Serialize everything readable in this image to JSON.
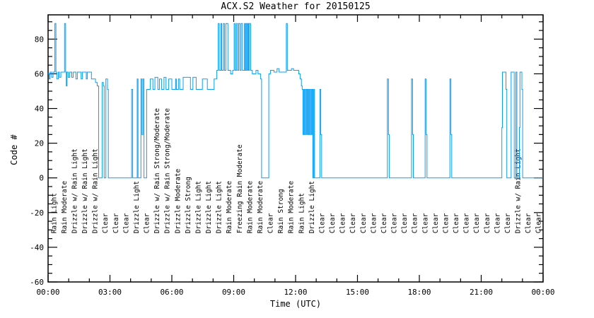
{
  "chart_data": {
    "type": "line",
    "title": "ACX.S2 Weather for 20150125",
    "xlabel": "Time (UTC)",
    "ylabel": "Code #",
    "xlim_hours": [
      0,
      24
    ],
    "ylim": [
      -60,
      94
    ],
    "grid": false,
    "legend": "none",
    "line_color": "#06a0fa",
    "axis_color": "#000000",
    "x_major_ticks": [
      {
        "hour": 0,
        "label": "00:00"
      },
      {
        "hour": 3,
        "label": "03:00"
      },
      {
        "hour": 6,
        "label": "06:00"
      },
      {
        "hour": 9,
        "label": "09:00"
      },
      {
        "hour": 12,
        "label": "12:00"
      },
      {
        "hour": 15,
        "label": "15:00"
      },
      {
        "hour": 18,
        "label": "18:00"
      },
      {
        "hour": 21,
        "label": "21:00"
      },
      {
        "hour": 24,
        "label": "00:00"
      }
    ],
    "x_minor_step_hours": 1,
    "y_major_ticks": [
      -60,
      -40,
      -20,
      0,
      20,
      40,
      60,
      80
    ],
    "y_minor_step": 5,
    "series": [
      {
        "name": "weather code",
        "step_points": [
          [
            0.0,
            60
          ],
          [
            0.05,
            57
          ],
          [
            0.1,
            61
          ],
          [
            0.17,
            58
          ],
          [
            0.24,
            61
          ],
          [
            0.33,
            89
          ],
          [
            0.38,
            61
          ],
          [
            0.42,
            57
          ],
          [
            0.5,
            61
          ],
          [
            0.55,
            58
          ],
          [
            0.62,
            61
          ],
          [
            0.8,
            89
          ],
          [
            0.85,
            61
          ],
          [
            0.88,
            53
          ],
          [
            0.92,
            61
          ],
          [
            0.98,
            58
          ],
          [
            1.05,
            61
          ],
          [
            1.15,
            58
          ],
          [
            1.22,
            61
          ],
          [
            1.35,
            57
          ],
          [
            1.42,
            61
          ],
          [
            1.6,
            57
          ],
          [
            1.66,
            61
          ],
          [
            1.85,
            57
          ],
          [
            1.9,
            61
          ],
          [
            2.1,
            57
          ],
          [
            2.3,
            55
          ],
          [
            2.38,
            53
          ],
          [
            2.45,
            0
          ],
          [
            2.62,
            55
          ],
          [
            2.68,
            53
          ],
          [
            2.72,
            0
          ],
          [
            2.8,
            57
          ],
          [
            2.88,
            51
          ],
          [
            2.92,
            0
          ],
          [
            4.05,
            51
          ],
          [
            4.1,
            0
          ],
          [
            4.32,
            57
          ],
          [
            4.36,
            0
          ],
          [
            4.5,
            57
          ],
          [
            4.55,
            25
          ],
          [
            4.6,
            57
          ],
          [
            4.65,
            0
          ],
          [
            4.78,
            51
          ],
          [
            4.95,
            57
          ],
          [
            5.08,
            51
          ],
          [
            5.18,
            58
          ],
          [
            5.32,
            51
          ],
          [
            5.4,
            57
          ],
          [
            5.5,
            51
          ],
          [
            5.62,
            58
          ],
          [
            5.72,
            51
          ],
          [
            5.85,
            57
          ],
          [
            6.0,
            51
          ],
          [
            6.18,
            57
          ],
          [
            6.22,
            51
          ],
          [
            6.32,
            57
          ],
          [
            6.38,
            51
          ],
          [
            6.55,
            58
          ],
          [
            6.9,
            51
          ],
          [
            7.02,
            58
          ],
          [
            7.18,
            51
          ],
          [
            7.48,
            57
          ],
          [
            7.72,
            51
          ],
          [
            8.05,
            57
          ],
          [
            8.18,
            62
          ],
          [
            8.25,
            89
          ],
          [
            8.3,
            62
          ],
          [
            8.38,
            89
          ],
          [
            8.42,
            62
          ],
          [
            8.5,
            89
          ],
          [
            8.55,
            62
          ],
          [
            8.62,
            89
          ],
          [
            8.72,
            62
          ],
          [
            8.85,
            60
          ],
          [
            8.95,
            62
          ],
          [
            9.02,
            89
          ],
          [
            9.07,
            62
          ],
          [
            9.13,
            89
          ],
          [
            9.18,
            62
          ],
          [
            9.24,
            89
          ],
          [
            9.3,
            62
          ],
          [
            9.36,
            89
          ],
          [
            9.42,
            62
          ],
          [
            9.52,
            89
          ],
          [
            9.56,
            62
          ],
          [
            9.6,
            89
          ],
          [
            9.64,
            62
          ],
          [
            9.68,
            89
          ],
          [
            9.72,
            62
          ],
          [
            9.76,
            89
          ],
          [
            9.82,
            62
          ],
          [
            9.9,
            60
          ],
          [
            10.08,
            62
          ],
          [
            10.18,
            60
          ],
          [
            10.3,
            57
          ],
          [
            10.35,
            0
          ],
          [
            10.7,
            60
          ],
          [
            10.78,
            62
          ],
          [
            10.95,
            61
          ],
          [
            11.1,
            63
          ],
          [
            11.2,
            61
          ],
          [
            11.55,
            89
          ],
          [
            11.6,
            62
          ],
          [
            11.8,
            63
          ],
          [
            11.9,
            62
          ],
          [
            12.15,
            60
          ],
          [
            12.22,
            57
          ],
          [
            12.28,
            53
          ],
          [
            12.32,
            51
          ],
          [
            12.36,
            25
          ],
          [
            12.4,
            51
          ],
          [
            12.44,
            25
          ],
          [
            12.48,
            51
          ],
          [
            12.52,
            25
          ],
          [
            12.56,
            51
          ],
          [
            12.6,
            25
          ],
          [
            12.64,
            51
          ],
          [
            12.68,
            25
          ],
          [
            12.72,
            51
          ],
          [
            12.76,
            25
          ],
          [
            12.8,
            51
          ],
          [
            12.84,
            0
          ],
          [
            12.88,
            51
          ],
          [
            12.92,
            0
          ],
          [
            13.18,
            51
          ],
          [
            13.22,
            25
          ],
          [
            13.26,
            0
          ],
          [
            16.45,
            57
          ],
          [
            16.5,
            25
          ],
          [
            16.54,
            0
          ],
          [
            17.62,
            57
          ],
          [
            17.67,
            25
          ],
          [
            17.71,
            0
          ],
          [
            18.28,
            57
          ],
          [
            18.33,
            25
          ],
          [
            18.37,
            0
          ],
          [
            19.48,
            57
          ],
          [
            19.53,
            25
          ],
          [
            19.57,
            0
          ],
          [
            22.0,
            29
          ],
          [
            22.03,
            61
          ],
          [
            22.2,
            51
          ],
          [
            22.24,
            0
          ],
          [
            22.45,
            61
          ],
          [
            22.6,
            0
          ],
          [
            22.68,
            61
          ],
          [
            22.73,
            0
          ],
          [
            22.85,
            29
          ],
          [
            22.88,
            61
          ],
          [
            22.97,
            51
          ],
          [
            23.01,
            0
          ],
          [
            24.0,
            0
          ]
        ]
      }
    ],
    "weather_labels": {
      "start_hour": 0.25,
      "step_hours": 0.5,
      "anchor_y_value": -32,
      "labels": [
        "Rain Light",
        "Rain Moderate",
        "Drizzle w/ Rain Light",
        "Drizzle w/ Rain Light",
        "Drizzle w/ Rain Light",
        "Clear",
        "Clear",
        "Clear",
        "Drizzle Light",
        "Clear",
        "Drizzle w/ Rain Strong/Moderate",
        "Drizzle w/ Rain Strong/Moderate",
        "Drizzle Moderate",
        "Drizzle Strong",
        "Drizzle Light",
        "Drizzle Light",
        "Drizzle Light",
        "Rain Moderate",
        "Freezing Rain Moderate",
        "Rain Moderate",
        "Rain Moderate",
        "Clear",
        "Rain Strong",
        "Rain Moderate",
        "Rain Light",
        "Drizzle Light",
        "Clear",
        "Clear",
        "Clear",
        "Clear",
        "Clear",
        "Clear",
        "Clear",
        "Clear",
        "Clear",
        "Clear",
        "Clear",
        "Clear",
        "Clear",
        "Clear",
        "Clear",
        "Clear",
        "Clear",
        "Clear",
        "Clear",
        "Drizzle w/ Rain Light",
        "Clear",
        "Clear"
      ]
    }
  }
}
